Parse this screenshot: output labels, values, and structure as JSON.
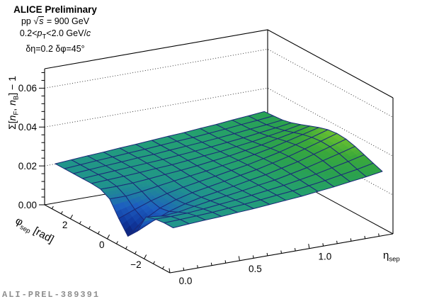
{
  "header": {
    "line1": "ALICE Preliminary",
    "line2": {
      "pre": "pp ",
      "radical": "√",
      "s": "s",
      "post": " = 900 GeV"
    },
    "line3": {
      "p1": "0.2<",
      "p": "p",
      "psub": "T",
      "p2": "<2.0 GeV/",
      "c": "c"
    },
    "line4": "δη=0.2 δφ=45°"
  },
  "watermark": "ALI-PREL-389391",
  "chart_data": {
    "type": "surface3d",
    "title": "",
    "x_axis": {
      "title_main": "η",
      "title_sub": "sep",
      "range": [
        0,
        1.6
      ],
      "major_ticks": [
        0,
        0.5,
        1.0
      ],
      "tick_labels": [
        "0.0",
        "0.5",
        "1.0"
      ],
      "minor_step": 0.1
    },
    "y_axis": {
      "title_main": "φ",
      "title_sub": "sep",
      "title_unit": " [rad]",
      "range": [
        -3.4,
        3.4
      ],
      "major_ticks": [
        2,
        0,
        -2
      ],
      "tick_labels": [
        "2",
        "0",
        "−2"
      ],
      "minor_step": 0.5
    },
    "z_axis": {
      "title_parts": {
        "pre": "Σ[",
        "n1": "n",
        "sub1": "F",
        "comma": ", ",
        "n2": "n",
        "sub2": "B",
        "post": "] − 1"
      },
      "range": [
        0,
        0.07
      ],
      "major_ticks": [
        0,
        0.02,
        0.04,
        0.06
      ],
      "tick_labels": [
        "0.00",
        "0.02",
        "0.04",
        "0.06"
      ],
      "minor_step": 0.004,
      "gridlines": [
        0.02,
        0.04,
        0.06
      ]
    },
    "surface": {
      "eta_values": [
        0.05,
        0.165,
        0.281,
        0.396,
        0.512,
        0.627,
        0.742,
        0.858,
        0.973,
        1.088,
        1.204,
        1.319,
        1.435,
        1.55
      ],
      "phi_values": [
        3.2,
        2.708,
        2.215,
        1.723,
        1.231,
        0.738,
        0.246,
        -0.246,
        -0.738,
        -1.231,
        -1.723,
        -2.215,
        -2.708,
        -3.2
      ],
      "z_values": [
        [
          0.0215,
          0.0221,
          0.0227,
          0.0232,
          0.0238,
          0.0243,
          0.0249,
          0.0255,
          0.026,
          0.0267,
          0.0273,
          0.0281,
          0.0288,
          0.0296
        ],
        [
          0.0215,
          0.0221,
          0.0227,
          0.0232,
          0.0238,
          0.0243,
          0.0249,
          0.0255,
          0.026,
          0.0267,
          0.0274,
          0.0283,
          0.029,
          0.0299
        ],
        [
          0.0215,
          0.0221,
          0.0227,
          0.0232,
          0.0238,
          0.0242,
          0.0249,
          0.0255,
          0.0261,
          0.0268,
          0.0276,
          0.0285,
          0.0293,
          0.0303
        ],
        [
          0.0215,
          0.0221,
          0.0226,
          0.0231,
          0.0236,
          0.0241,
          0.0248,
          0.0255,
          0.0262,
          0.0271,
          0.028,
          0.0291,
          0.0302,
          0.0314
        ],
        [
          0.0215,
          0.0219,
          0.0223,
          0.0228,
          0.0234,
          0.0239,
          0.0247,
          0.0256,
          0.0264,
          0.0275,
          0.0286,
          0.03,
          0.0314,
          0.033
        ],
        [
          0.0211,
          0.0211,
          0.0214,
          0.0221,
          0.0229,
          0.0236,
          0.0245,
          0.0256,
          0.0266,
          0.028,
          0.0294,
          0.0312,
          0.0329,
          0.0348
        ],
        [
          0.0186,
          0.0186,
          0.0196,
          0.0209,
          0.0221,
          0.0232,
          0.0243,
          0.0256,
          0.0269,
          0.0285,
          0.0302,
          0.0323,
          0.0344,
          0.0366
        ],
        [
          0.0111,
          0.0143,
          0.0173,
          0.0196,
          0.0214,
          0.0228,
          0.0242,
          0.0257,
          0.0271,
          0.0289,
          0.0308,
          0.0331,
          0.0355,
          0.038
        ],
        [
          0.0045,
          0.0115,
          0.0161,
          0.019,
          0.0211,
          0.0226,
          0.0241,
          0.0257,
          0.0272,
          0.0291,
          0.0311,
          0.0335,
          0.036,
          0.0386
        ],
        [
          0.0095,
          0.0134,
          0.0169,
          0.0194,
          0.0213,
          0.0227,
          0.0241,
          0.0257,
          0.0271,
          0.029,
          0.0309,
          0.0333,
          0.0357,
          0.0382
        ],
        [
          0.0195,
          0.0185,
          0.0191,
          0.0206,
          0.022,
          0.0231,
          0.0243,
          0.0257,
          0.0269,
          0.0286,
          0.0304,
          0.0325,
          0.0347,
          0.037
        ],
        [
          0.0209,
          0.0208,
          0.0211,
          0.0218,
          0.0227,
          0.0235,
          0.0245,
          0.0256,
          0.0267,
          0.0281,
          0.0296,
          0.0314,
          0.0332,
          0.0352
        ],
        [
          0.0215,
          0.0218,
          0.0222,
          0.0226,
          0.0233,
          0.0239,
          0.0247,
          0.0256,
          0.0264,
          0.0276,
          0.0288,
          0.0303,
          0.0317,
          0.0334
        ],
        [
          0.0215,
          0.0221,
          0.0226,
          0.023,
          0.0236,
          0.0241,
          0.0248,
          0.0255,
          0.0262,
          0.0272,
          0.0281,
          0.0293,
          0.0304,
          0.0317
        ]
      ]
    },
    "palette": {
      "z_min": 0.004,
      "z_max": 0.039,
      "stops": [
        [
          0.0,
          "#0a1a6e"
        ],
        [
          0.17,
          "#1039a0"
        ],
        [
          0.33,
          "#1d5fc0"
        ],
        [
          0.5,
          "#20948c"
        ],
        [
          0.62,
          "#23a073"
        ],
        [
          0.75,
          "#2aa14f"
        ],
        [
          0.87,
          "#3aa83a"
        ],
        [
          1.0,
          "#72c42e"
        ]
      ]
    },
    "mesh_color": "#1b2a78",
    "frame_color": "#000000",
    "grid_color": "#222222"
  }
}
